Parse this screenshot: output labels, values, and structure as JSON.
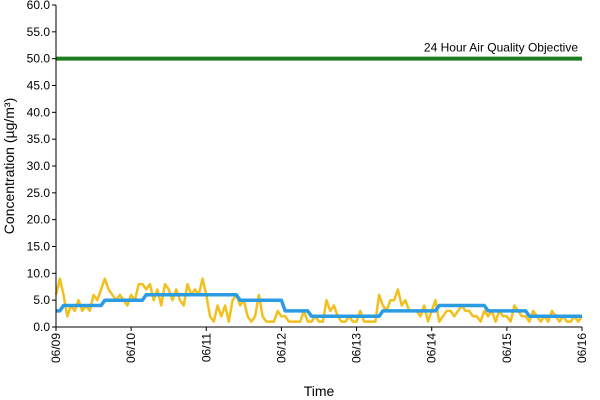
{
  "chart_data": {
    "type": "line",
    "xlabel": "Time",
    "ylabel": "Concentration (µg/m³)",
    "ylim": [
      0,
      60
    ],
    "yticks": [
      "0.0",
      "5.0",
      "10.0",
      "15.0",
      "20.0",
      "25.0",
      "30.0",
      "35.0",
      "40.0",
      "45.0",
      "50.0",
      "55.0",
      "60.0"
    ],
    "xlim": [
      "06/09",
      "06/16"
    ],
    "xticks": [
      "06/09",
      "06/10",
      "06/11",
      "06/12",
      "06/13",
      "06/14",
      "06/15",
      "06/16"
    ],
    "grid": false,
    "legend": "none",
    "objective": {
      "label": "24 Hour Air Quality Objective",
      "value": 50,
      "color": "#1e7d1e"
    },
    "series": [
      {
        "color": "#f2c01e",
        "x": [
          0,
          0.05,
          0.1,
          0.15,
          0.2,
          0.25,
          0.3,
          0.35,
          0.4,
          0.45,
          0.5,
          0.55,
          0.6,
          0.65,
          0.7,
          0.75,
          0.8,
          0.85,
          0.9,
          0.95,
          1,
          1.05,
          1.1,
          1.15,
          1.2,
          1.25,
          1.3,
          1.35,
          1.4,
          1.45,
          1.5,
          1.55,
          1.6,
          1.65,
          1.7,
          1.75,
          1.8,
          1.85,
          1.9,
          1.95,
          2,
          2.05,
          2.1,
          2.15,
          2.2,
          2.25,
          2.3,
          2.35,
          2.4,
          2.45,
          2.5,
          2.55,
          2.6,
          2.65,
          2.7,
          2.75,
          2.8,
          2.85,
          2.9,
          2.95,
          3,
          3.05,
          3.1,
          3.15,
          3.2,
          3.25,
          3.3,
          3.35,
          3.4,
          3.45,
          3.5,
          3.55,
          3.6,
          3.65,
          3.7,
          3.75,
          3.8,
          3.85,
          3.9,
          3.95,
          4,
          4.05,
          4.1,
          4.15,
          4.2,
          4.25,
          4.3,
          4.35,
          4.4,
          4.45,
          4.5,
          4.55,
          4.6,
          4.65,
          4.7,
          4.75,
          4.8,
          4.85,
          4.9,
          4.95,
          5,
          5.05,
          5.1,
          5.15,
          5.2,
          5.25,
          5.3,
          5.35,
          5.4,
          5.45,
          5.5,
          5.55,
          5.6,
          5.65,
          5.7,
          5.75,
          5.8,
          5.85,
          5.9,
          5.95,
          6,
          6.05,
          6.1,
          6.15,
          6.2,
          6.25,
          6.3,
          6.35,
          6.4,
          6.45,
          6.5,
          6.55,
          6.6,
          6.65,
          6.7,
          6.75,
          6.8,
          6.85,
          6.9,
          6.95,
          7
        ],
        "values": [
          6,
          9,
          6,
          2,
          4,
          3,
          5,
          3,
          4,
          3,
          6,
          5,
          7,
          9,
          7,
          6,
          5,
          6,
          5,
          4,
          6,
          5,
          8,
          8,
          7,
          8,
          5,
          7,
          4,
          8,
          7,
          5,
          7,
          5,
          4,
          8,
          6,
          7,
          6,
          9,
          6,
          2,
          1,
          4,
          2,
          4,
          1,
          5,
          6,
          4,
          5,
          2,
          1,
          2,
          6,
          2,
          1,
          1,
          1,
          3,
          2,
          2,
          1,
          1,
          1,
          1,
          3,
          1,
          1,
          2,
          1,
          1,
          5,
          3,
          4,
          2,
          1,
          1,
          2,
          1,
          1,
          3,
          1,
          1,
          1,
          1,
          6,
          4,
          3,
          5,
          5,
          7,
          4,
          5,
          3,
          3,
          3,
          2,
          4,
          1,
          3,
          5,
          1,
          2,
          3,
          3,
          2,
          3,
          4,
          3,
          3,
          2,
          2,
          1,
          3,
          2,
          3,
          1,
          3,
          2,
          2,
          1,
          4,
          3,
          2,
          2,
          1,
          3,
          2,
          1,
          2,
          1,
          3,
          2,
          1,
          2,
          1,
          1,
          2,
          1,
          2
        ],
        "_note_drop": ""
      },
      {
        "color": "#2b9be2",
        "x": [
          0,
          0.05,
          0.1,
          0.6,
          0.65,
          1.15,
          1.2,
          1.5,
          1.6,
          2.4,
          2.45,
          3,
          3.05,
          3.35,
          3.4,
          4,
          4.05,
          4.3,
          4.35,
          4.75,
          4.8,
          5.05,
          5.1,
          5.7,
          5.75,
          5.9,
          5.95,
          6.25,
          6.3,
          7
        ],
        "values": [
          3,
          3,
          4,
          4,
          5,
          5,
          6,
          6,
          6,
          6,
          5,
          5,
          3,
          3,
          2,
          2,
          2,
          2,
          3,
          3,
          3,
          3,
          4,
          4,
          3,
          3,
          3,
          3,
          2,
          2
        ]
      }
    ]
  }
}
